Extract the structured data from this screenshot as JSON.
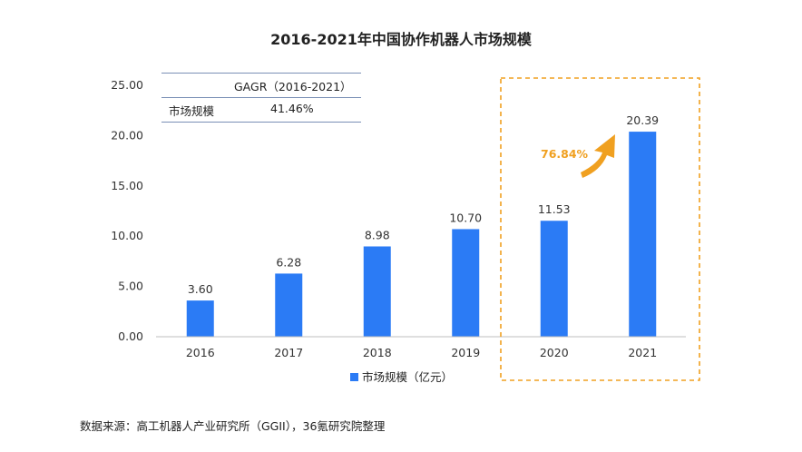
{
  "title": "2016-2021年中国协作机器人市场规模",
  "source_note": "数据来源：高工机器人产业研究所（GGII），36氪研究院整理",
  "cagr_table": {
    "header": "GAGR（2016-2021）",
    "row_label": "市场规模",
    "row_value": "41.46%"
  },
  "annotation": {
    "growth_label": "76.84%"
  },
  "colors": {
    "bar": "#2b7bf5",
    "highlight_border": "#f0a020",
    "arrow": "#f0a020"
  },
  "chart_data": {
    "type": "bar",
    "title": "2016-2021年中国协作机器人市场规模",
    "categories": [
      "2016",
      "2017",
      "2018",
      "2019",
      "2020",
      "2021"
    ],
    "series": [
      {
        "name": "市场规模（亿元）",
        "values": [
          3.6,
          6.28,
          8.98,
          10.7,
          11.53,
          20.39
        ]
      }
    ],
    "value_labels": [
      "3.60",
      "6.28",
      "8.98",
      "10.70",
      "11.53",
      "20.39"
    ],
    "y_ticks": [
      "0.00",
      "5.00",
      "10.00",
      "15.00",
      "20.00",
      "25.00"
    ],
    "ylim": [
      0,
      25
    ],
    "xlabel": "",
    "ylabel": "",
    "legend": "bottom",
    "legend_entries": [
      "市场规模（亿元）"
    ],
    "highlighted_categories": [
      "2020",
      "2021"
    ]
  }
}
